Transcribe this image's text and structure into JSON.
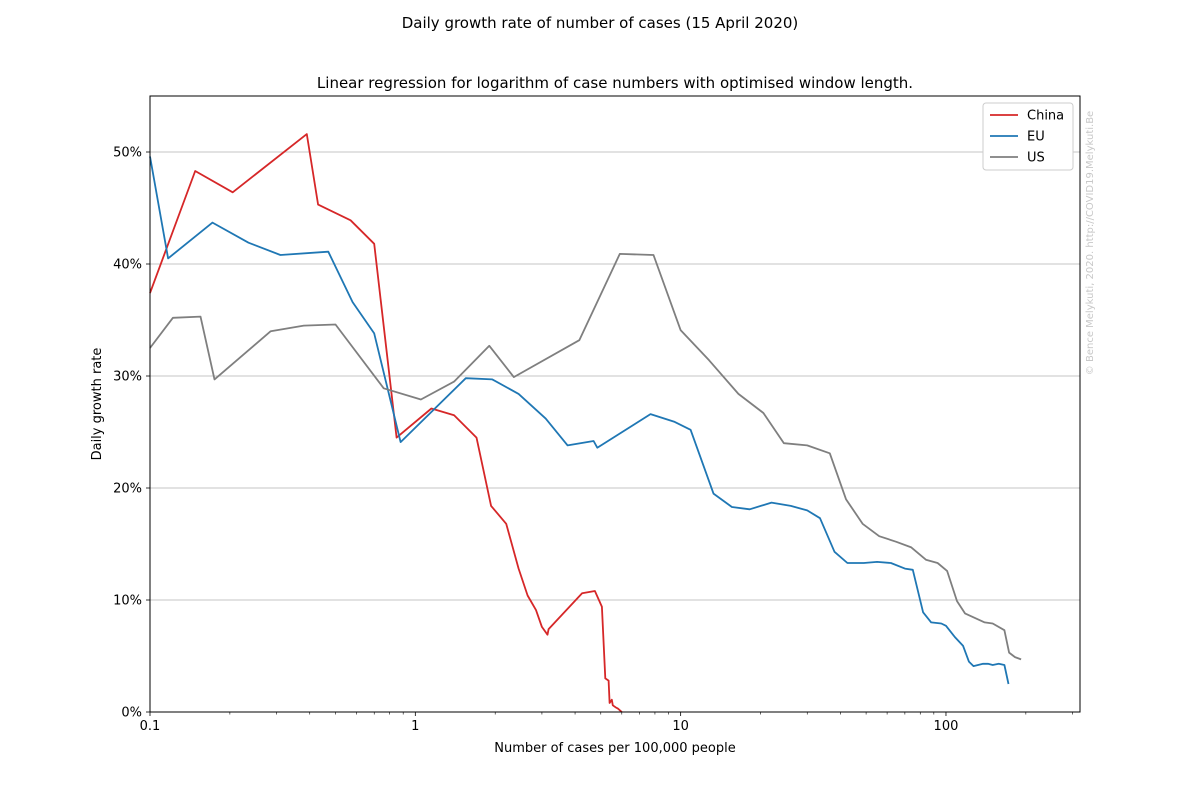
{
  "chart_data": {
    "type": "line",
    "suptitle": "Daily growth rate of number of cases (15 April 2020)",
    "title": "Linear regression for logarithm of case numbers with optimised window length.",
    "xlabel": "Number of cases per 100,000 people",
    "ylabel": "Daily growth rate",
    "xscale": "log",
    "xlim": [
      0.1,
      320
    ],
    "ylim": [
      0,
      0.55
    ],
    "grid": "y-major",
    "legend_position": "top-right",
    "watermark": "© Bence Melykuti, 2020. http://COVID19.Melykuti.Be",
    "x_ticks": [
      {
        "value": 0.1,
        "label": "0.1"
      },
      {
        "value": 1,
        "label": "1"
      },
      {
        "value": 10,
        "label": "10"
      },
      {
        "value": 100,
        "label": "100"
      }
    ],
    "y_ticks": [
      {
        "value": 0,
        "label": "0%"
      },
      {
        "value": 0.1,
        "label": "10%"
      },
      {
        "value": 0.2,
        "label": "20%"
      },
      {
        "value": 0.3,
        "label": "30%"
      },
      {
        "value": 0.4,
        "label": "40%"
      },
      {
        "value": 0.5,
        "label": "50%"
      }
    ],
    "series": [
      {
        "name": "China",
        "color": "#d62728",
        "points": [
          [
            0.1,
            0.374
          ],
          [
            0.148,
            0.483
          ],
          [
            0.205,
            0.464
          ],
          [
            0.39,
            0.516
          ],
          [
            0.43,
            0.453
          ],
          [
            0.57,
            0.439
          ],
          [
            0.7,
            0.418
          ],
          [
            0.85,
            0.245
          ],
          [
            1.15,
            0.271
          ],
          [
            1.4,
            0.265
          ],
          [
            1.7,
            0.245
          ],
          [
            1.93,
            0.184
          ],
          [
            2.2,
            0.168
          ],
          [
            2.45,
            0.128
          ],
          [
            2.65,
            0.104
          ],
          [
            2.85,
            0.091
          ],
          [
            3.0,
            0.076
          ],
          [
            3.15,
            0.069
          ],
          [
            3.18,
            0.074
          ],
          [
            4.25,
            0.106
          ],
          [
            4.75,
            0.108
          ],
          [
            5.05,
            0.094
          ],
          [
            5.2,
            0.03
          ],
          [
            5.35,
            0.028
          ],
          [
            5.4,
            0.008
          ],
          [
            5.5,
            0.011
          ],
          [
            5.55,
            0.006
          ],
          [
            5.7,
            0.004
          ],
          [
            5.8,
            0.003
          ],
          [
            6.0,
            0.0
          ]
        ]
      },
      {
        "name": "EU",
        "color": "#1f77b4",
        "points": [
          [
            0.1,
            0.496
          ],
          [
            0.117,
            0.405
          ],
          [
            0.172,
            0.437
          ],
          [
            0.235,
            0.419
          ],
          [
            0.31,
            0.408
          ],
          [
            0.47,
            0.411
          ],
          [
            0.58,
            0.366
          ],
          [
            0.7,
            0.338
          ],
          [
            0.88,
            0.241
          ],
          [
            1.55,
            0.298
          ],
          [
            1.95,
            0.297
          ],
          [
            2.45,
            0.284
          ],
          [
            3.1,
            0.262
          ],
          [
            3.75,
            0.238
          ],
          [
            4.7,
            0.242
          ],
          [
            4.85,
            0.236
          ],
          [
            7.7,
            0.266
          ],
          [
            9.5,
            0.259
          ],
          [
            10.9,
            0.252
          ],
          [
            13.3,
            0.195
          ],
          [
            15.6,
            0.183
          ],
          [
            18.2,
            0.181
          ],
          [
            22.0,
            0.187
          ],
          [
            26.0,
            0.184
          ],
          [
            30.0,
            0.18
          ],
          [
            33.5,
            0.173
          ],
          [
            38.0,
            0.143
          ],
          [
            42.5,
            0.133
          ],
          [
            49.0,
            0.133
          ],
          [
            55.0,
            0.134
          ],
          [
            62.0,
            0.133
          ],
          [
            70.0,
            0.128
          ],
          [
            75.0,
            0.127
          ],
          [
            82.0,
            0.089
          ],
          [
            88.0,
            0.08
          ],
          [
            96.0,
            0.079
          ],
          [
            100.0,
            0.077
          ],
          [
            108.0,
            0.067
          ],
          [
            116.0,
            0.059
          ],
          [
            122.0,
            0.045
          ],
          [
            127.0,
            0.041
          ],
          [
            138.0,
            0.043
          ],
          [
            144.0,
            0.043
          ],
          [
            150.0,
            0.042
          ],
          [
            158.0,
            0.043
          ],
          [
            166.0,
            0.042
          ],
          [
            172.0,
            0.025
          ]
        ]
      },
      {
        "name": "US",
        "color": "#7f7f7f",
        "points": [
          [
            0.1,
            0.325
          ],
          [
            0.122,
            0.352
          ],
          [
            0.155,
            0.353
          ],
          [
            0.175,
            0.297
          ],
          [
            0.285,
            0.34
          ],
          [
            0.38,
            0.345
          ],
          [
            0.5,
            0.346
          ],
          [
            0.76,
            0.289
          ],
          [
            1.05,
            0.279
          ],
          [
            1.4,
            0.295
          ],
          [
            1.9,
            0.327
          ],
          [
            2.35,
            0.299
          ],
          [
            4.15,
            0.332
          ],
          [
            5.9,
            0.409
          ],
          [
            7.9,
            0.408
          ],
          [
            10.0,
            0.341
          ],
          [
            12.8,
            0.314
          ],
          [
            16.5,
            0.284
          ],
          [
            20.5,
            0.267
          ],
          [
            24.5,
            0.24
          ],
          [
            30.0,
            0.238
          ],
          [
            36.5,
            0.231
          ],
          [
            42.0,
            0.19
          ],
          [
            48.5,
            0.168
          ],
          [
            56.0,
            0.157
          ],
          [
            65.0,
            0.152
          ],
          [
            74.0,
            0.147
          ],
          [
            84.0,
            0.136
          ],
          [
            93.0,
            0.133
          ],
          [
            101.0,
            0.126
          ],
          [
            110.0,
            0.099
          ],
          [
            118.0,
            0.088
          ],
          [
            140.0,
            0.08
          ],
          [
            150.0,
            0.079
          ],
          [
            166.0,
            0.073
          ],
          [
            173.0,
            0.053
          ],
          [
            182.0,
            0.049
          ],
          [
            192.0,
            0.047
          ]
        ]
      }
    ]
  }
}
